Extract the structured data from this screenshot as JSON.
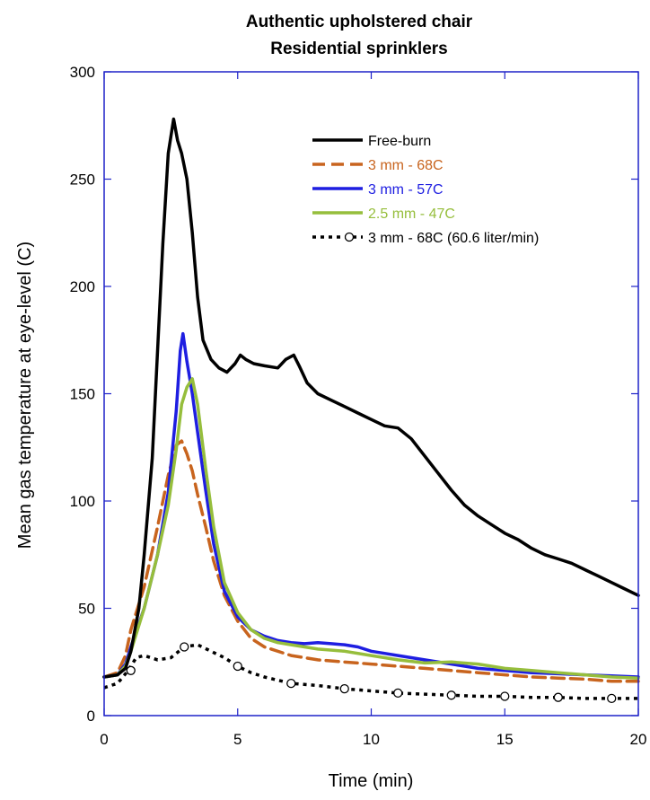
{
  "chart_data": {
    "type": "line",
    "title_lines": [
      "Authentic upholstered chair",
      "Residential sprinklers"
    ],
    "xlabel": "Time (min)",
    "ylabel": "Mean gas temperature at eye-level (C)",
    "xlim": [
      0,
      20
    ],
    "ylim": [
      0,
      300
    ],
    "xticks": [
      0,
      5,
      10,
      15,
      20
    ],
    "yticks": [
      0,
      50,
      100,
      150,
      200,
      250,
      300
    ],
    "grid": false,
    "legend_position": "top-right",
    "frame_color": "#1e22c8",
    "series": [
      {
        "name": "Free-burn",
        "color": "#000000",
        "style": "solid",
        "marker": "none",
        "points": [
          [
            0,
            18
          ],
          [
            0.5,
            19
          ],
          [
            0.8,
            22
          ],
          [
            1.0,
            30
          ],
          [
            1.3,
            50
          ],
          [
            1.5,
            75
          ],
          [
            1.8,
            120
          ],
          [
            2.0,
            170
          ],
          [
            2.2,
            220
          ],
          [
            2.4,
            262
          ],
          [
            2.5,
            270
          ],
          [
            2.6,
            278
          ],
          [
            2.75,
            268
          ],
          [
            2.9,
            262
          ],
          [
            3.1,
            250
          ],
          [
            3.3,
            225
          ],
          [
            3.5,
            195
          ],
          [
            3.7,
            175
          ],
          [
            4.0,
            166
          ],
          [
            4.3,
            162
          ],
          [
            4.6,
            160
          ],
          [
            4.9,
            164
          ],
          [
            5.1,
            168
          ],
          [
            5.3,
            166
          ],
          [
            5.6,
            164
          ],
          [
            6.0,
            163
          ],
          [
            6.5,
            162
          ],
          [
            6.8,
            166
          ],
          [
            7.1,
            168
          ],
          [
            7.3,
            163
          ],
          [
            7.6,
            155
          ],
          [
            8.0,
            150
          ],
          [
            8.5,
            147
          ],
          [
            9.0,
            144
          ],
          [
            9.5,
            141
          ],
          [
            10.0,
            138
          ],
          [
            10.5,
            135
          ],
          [
            11.0,
            134
          ],
          [
            11.5,
            129
          ],
          [
            12.0,
            121
          ],
          [
            12.5,
            113
          ],
          [
            13.0,
            105
          ],
          [
            13.5,
            98
          ],
          [
            14.0,
            93
          ],
          [
            14.5,
            89
          ],
          [
            15.0,
            85
          ],
          [
            15.5,
            82
          ],
          [
            16.0,
            78
          ],
          [
            16.5,
            75
          ],
          [
            17.0,
            73
          ],
          [
            17.5,
            71
          ],
          [
            18.0,
            68
          ],
          [
            18.5,
            65
          ],
          [
            19.0,
            62
          ],
          [
            19.5,
            59
          ],
          [
            20.0,
            56
          ]
        ]
      },
      {
        "name": "3 mm - 68C",
        "color": "#c8641e",
        "style": "dashed",
        "marker": "none",
        "points": [
          [
            0,
            18
          ],
          [
            0.5,
            20
          ],
          [
            0.8,
            28
          ],
          [
            1.0,
            40
          ],
          [
            1.5,
            60
          ],
          [
            2.0,
            88
          ],
          [
            2.4,
            112
          ],
          [
            2.7,
            126
          ],
          [
            2.9,
            128
          ],
          [
            3.1,
            122
          ],
          [
            3.3,
            114
          ],
          [
            3.5,
            103
          ],
          [
            3.8,
            88
          ],
          [
            4.1,
            72
          ],
          [
            4.5,
            56
          ],
          [
            5.0,
            44
          ],
          [
            5.5,
            36
          ],
          [
            6.0,
            32
          ],
          [
            7.0,
            28
          ],
          [
            8.0,
            26
          ],
          [
            9.0,
            25
          ],
          [
            10.0,
            24
          ],
          [
            11.0,
            23
          ],
          [
            12.0,
            22
          ],
          [
            13.0,
            21
          ],
          [
            14.0,
            20
          ],
          [
            15.0,
            19
          ],
          [
            16.0,
            18
          ],
          [
            17.0,
            17.5
          ],
          [
            18.0,
            17
          ],
          [
            19.0,
            16
          ],
          [
            20.0,
            16
          ]
        ]
      },
      {
        "name": "3 mm - 57C",
        "color": "#1e1ee1",
        "style": "solid",
        "marker": "none",
        "points": [
          [
            0,
            18
          ],
          [
            0.5,
            19
          ],
          [
            0.8,
            24
          ],
          [
            1.0,
            32
          ],
          [
            1.5,
            50
          ],
          [
            2.0,
            75
          ],
          [
            2.4,
            104
          ],
          [
            2.7,
            142
          ],
          [
            2.85,
            170
          ],
          [
            2.95,
            178
          ],
          [
            3.1,
            165
          ],
          [
            3.3,
            150
          ],
          [
            3.5,
            132
          ],
          [
            3.8,
            105
          ],
          [
            4.1,
            80
          ],
          [
            4.5,
            58
          ],
          [
            5.0,
            46
          ],
          [
            5.5,
            40
          ],
          [
            6.0,
            37
          ],
          [
            6.5,
            35
          ],
          [
            7.0,
            34
          ],
          [
            7.5,
            33.5
          ],
          [
            8.0,
            34
          ],
          [
            8.5,
            33.5
          ],
          [
            9.0,
            33
          ],
          [
            9.5,
            32
          ],
          [
            10.0,
            30
          ],
          [
            10.5,
            29
          ],
          [
            11.0,
            28
          ],
          [
            12.0,
            26
          ],
          [
            13.0,
            24
          ],
          [
            14.0,
            22
          ],
          [
            15.0,
            21
          ],
          [
            16.0,
            20
          ],
          [
            17.0,
            19.5
          ],
          [
            18.0,
            19
          ],
          [
            19.0,
            18.5
          ],
          [
            20.0,
            18
          ]
        ]
      },
      {
        "name": "2.5 mm - 47C",
        "color": "#96be3c",
        "style": "solid",
        "marker": "none",
        "points": [
          [
            0,
            18
          ],
          [
            0.5,
            19
          ],
          [
            0.8,
            23
          ],
          [
            1.0,
            30
          ],
          [
            1.5,
            50
          ],
          [
            2.0,
            75
          ],
          [
            2.4,
            98
          ],
          [
            2.7,
            124
          ],
          [
            2.9,
            145
          ],
          [
            3.1,
            153
          ],
          [
            3.3,
            157
          ],
          [
            3.5,
            145
          ],
          [
            3.8,
            115
          ],
          [
            4.1,
            88
          ],
          [
            4.5,
            62
          ],
          [
            5.0,
            48
          ],
          [
            5.5,
            40
          ],
          [
            6.0,
            36
          ],
          [
            6.5,
            34
          ],
          [
            7.0,
            33
          ],
          [
            7.5,
            32
          ],
          [
            8.0,
            31
          ],
          [
            9.0,
            30
          ],
          [
            10.0,
            28
          ],
          [
            11.0,
            26
          ],
          [
            12.0,
            24.5
          ],
          [
            13.0,
            25
          ],
          [
            14.0,
            24
          ],
          [
            15.0,
            22
          ],
          [
            16.0,
            21
          ],
          [
            17.0,
            20
          ],
          [
            18.0,
            19
          ],
          [
            19.0,
            18
          ],
          [
            20.0,
            17.5
          ]
        ]
      },
      {
        "name": "3 mm - 68C (60.6 liter/min)",
        "color": "#000000",
        "style": "dotted",
        "marker": "circle",
        "points": [
          [
            0,
            13
          ],
          [
            0.5,
            15
          ],
          [
            0.9,
            21
          ],
          [
            1.2,
            27
          ],
          [
            1.5,
            28
          ],
          [
            2.0,
            26
          ],
          [
            2.5,
            27
          ],
          [
            3.0,
            32
          ],
          [
            3.5,
            33
          ],
          [
            4.0,
            30
          ],
          [
            4.5,
            27
          ],
          [
            5.0,
            23
          ],
          [
            5.5,
            20
          ],
          [
            6.0,
            18
          ],
          [
            7.0,
            15
          ],
          [
            8.0,
            14
          ],
          [
            9.0,
            12.5
          ],
          [
            10.0,
            11.5
          ],
          [
            11.0,
            10.5
          ],
          [
            12.0,
            10
          ],
          [
            13.0,
            9.5
          ],
          [
            14.0,
            9
          ],
          [
            15.0,
            9
          ],
          [
            16.0,
            8.5
          ],
          [
            17.0,
            8.5
          ],
          [
            18.0,
            8
          ],
          [
            19.0,
            8
          ],
          [
            20.0,
            8
          ]
        ],
        "marker_points": [
          [
            1.0,
            21
          ],
          [
            3.0,
            32
          ],
          [
            5.0,
            23
          ],
          [
            7.0,
            15
          ],
          [
            9.0,
            12.5
          ],
          [
            11.0,
            10.5
          ],
          [
            13.0,
            9.5
          ],
          [
            15.0,
            9
          ],
          [
            17.0,
            8.5
          ],
          [
            19.0,
            8
          ]
        ]
      }
    ]
  }
}
